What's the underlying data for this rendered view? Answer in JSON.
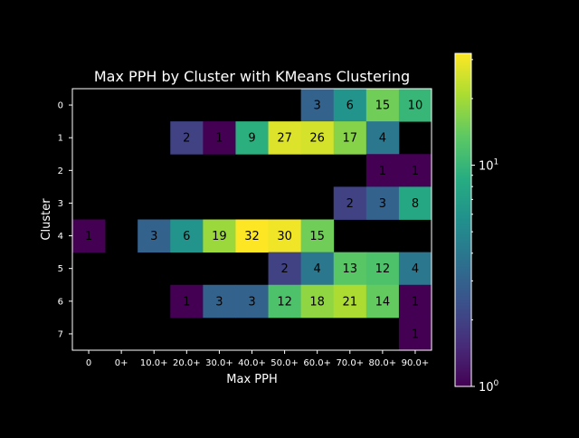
{
  "chart_data": {
    "type": "heatmap",
    "title": "Max PPH by Cluster with KMeans Clustering",
    "xlabel": "Max PPH",
    "ylabel": "Cluster",
    "x_categories": [
      "0",
      "0+",
      "10.0+",
      "20.0+",
      "30.0+",
      "40.0+",
      "50.0+",
      "60.0+",
      "70.0+",
      "80.0+",
      "90.0+"
    ],
    "y_categories": [
      "0",
      "1",
      "2",
      "3",
      "4",
      "5",
      "6",
      "7"
    ],
    "values": [
      [
        null,
        null,
        null,
        null,
        null,
        null,
        null,
        3,
        6,
        15,
        10
      ],
      [
        null,
        null,
        null,
        2,
        1,
        9,
        27,
        26,
        17,
        4,
        null
      ],
      [
        null,
        null,
        null,
        null,
        null,
        null,
        null,
        null,
        null,
        1,
        1
      ],
      [
        null,
        null,
        null,
        null,
        null,
        null,
        null,
        null,
        2,
        3,
        8
      ],
      [
        1,
        null,
        3,
        6,
        19,
        32,
        30,
        15,
        null,
        null,
        null
      ],
      [
        null,
        null,
        null,
        null,
        null,
        null,
        2,
        4,
        13,
        12,
        4
      ],
      [
        null,
        null,
        null,
        1,
        3,
        3,
        12,
        18,
        21,
        14,
        1
      ],
      [
        null,
        null,
        null,
        null,
        null,
        null,
        null,
        null,
        null,
        null,
        1
      ]
    ],
    "colorbar": {
      "scale": "log",
      "min": 1,
      "max": 32,
      "colormap": "viridis",
      "tick_labels": [
        "10^0",
        "10^1"
      ]
    },
    "background_color": "#000000",
    "text_color": "#ffffff",
    "cell_text_color": "#000000",
    "grid": false
  }
}
